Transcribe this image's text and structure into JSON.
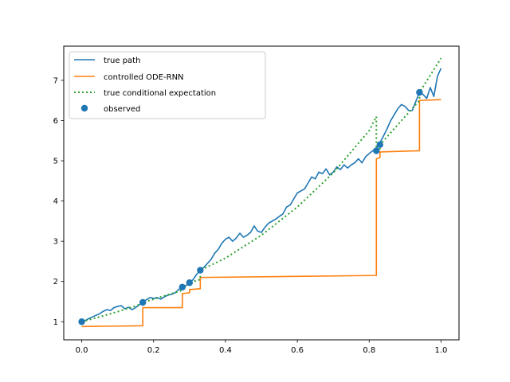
{
  "chart_data": {
    "type": "line",
    "title": "",
    "xlabel": "",
    "ylabel": "",
    "xlim": [
      -0.05,
      1.05
    ],
    "ylim": [
      0.55,
      7.85
    ],
    "xticks": [
      0.0,
      0.2,
      0.4,
      0.6,
      0.8,
      1.0
    ],
    "xtick_labels": [
      "0.0",
      "0.2",
      "0.4",
      "0.6",
      "0.8",
      "1.0"
    ],
    "yticks": [
      1,
      2,
      3,
      4,
      5,
      6,
      7
    ],
    "ytick_labels": [
      "1",
      "2",
      "3",
      "4",
      "5",
      "6",
      "7"
    ],
    "grid": false,
    "legend_position": "upper-left",
    "series": [
      {
        "name": "true path",
        "style": "solid",
        "color": "#1f77b4",
        "x": [
          0.0,
          0.01,
          0.02,
          0.03,
          0.04,
          0.05,
          0.06,
          0.07,
          0.08,
          0.09,
          0.1,
          0.11,
          0.12,
          0.13,
          0.14,
          0.15,
          0.16,
          0.17,
          0.18,
          0.19,
          0.2,
          0.21,
          0.22,
          0.23,
          0.24,
          0.25,
          0.26,
          0.27,
          0.28,
          0.29,
          0.3,
          0.31,
          0.32,
          0.33,
          0.34,
          0.35,
          0.36,
          0.37,
          0.38,
          0.39,
          0.4,
          0.41,
          0.42,
          0.43,
          0.44,
          0.45,
          0.46,
          0.47,
          0.48,
          0.49,
          0.5,
          0.51,
          0.52,
          0.53,
          0.54,
          0.55,
          0.56,
          0.57,
          0.58,
          0.59,
          0.6,
          0.61,
          0.62,
          0.63,
          0.64,
          0.65,
          0.66,
          0.67,
          0.68,
          0.69,
          0.7,
          0.71,
          0.72,
          0.73,
          0.74,
          0.75,
          0.76,
          0.77,
          0.78,
          0.79,
          0.8,
          0.81,
          0.82,
          0.83,
          0.84,
          0.85,
          0.86,
          0.87,
          0.88,
          0.89,
          0.9,
          0.91,
          0.92,
          0.93,
          0.94,
          0.95,
          0.96,
          0.97,
          0.98,
          0.99,
          1.0
        ],
        "y": [
          1.0,
          1.03,
          1.08,
          1.12,
          1.16,
          1.2,
          1.26,
          1.3,
          1.28,
          1.35,
          1.38,
          1.4,
          1.32,
          1.36,
          1.3,
          1.35,
          1.42,
          1.48,
          1.55,
          1.6,
          1.58,
          1.6,
          1.56,
          1.62,
          1.66,
          1.68,
          1.72,
          1.8,
          1.86,
          1.9,
          1.96,
          2.05,
          2.18,
          2.28,
          2.35,
          2.45,
          2.55,
          2.7,
          2.8,
          2.95,
          3.05,
          3.1,
          3.0,
          3.08,
          3.2,
          3.1,
          3.15,
          3.22,
          3.38,
          3.25,
          3.22,
          3.35,
          3.45,
          3.5,
          3.55,
          3.62,
          3.68,
          3.85,
          3.9,
          4.05,
          4.2,
          4.25,
          4.3,
          4.45,
          4.6,
          4.55,
          4.72,
          4.68,
          4.8,
          4.65,
          4.72,
          4.85,
          4.78,
          4.9,
          4.82,
          4.9,
          4.95,
          5.05,
          4.95,
          5.1,
          5.18,
          5.25,
          5.3,
          5.45,
          5.62,
          5.8,
          6.0,
          6.15,
          6.3,
          6.4,
          6.35,
          6.25,
          6.25,
          6.48,
          6.7,
          6.65,
          6.55,
          6.82,
          6.6,
          7.1,
          7.3
        ]
      },
      {
        "name": "controlled ODE-RNN",
        "style": "step",
        "color": "#ff7f0e",
        "x": [
          0.0,
          0.17,
          0.17,
          0.28,
          0.28,
          0.3,
          0.3,
          0.33,
          0.33,
          0.82,
          0.82,
          0.83,
          0.83,
          0.94,
          0.94,
          1.0
        ],
        "y": [
          0.88,
          0.9,
          1.35,
          1.35,
          1.7,
          1.72,
          1.8,
          1.82,
          2.1,
          2.15,
          5.05,
          5.08,
          5.22,
          5.25,
          6.5,
          6.52
        ]
      },
      {
        "name": "true conditional expectation",
        "style": "dotted",
        "color": "#2ca02c",
        "x": [
          0.0,
          0.05,
          0.1,
          0.17,
          0.17,
          0.2,
          0.28,
          0.28,
          0.3,
          0.3,
          0.33,
          0.33,
          0.4,
          0.5,
          0.6,
          0.7,
          0.8,
          0.82,
          0.82,
          0.83,
          0.83,
          0.9,
          0.94,
          0.94,
          1.0
        ],
        "y": [
          1.0,
          1.12,
          1.25,
          1.45,
          1.48,
          1.56,
          1.78,
          1.86,
          1.91,
          1.97,
          2.05,
          2.28,
          2.58,
          3.15,
          3.85,
          4.7,
          5.75,
          6.1,
          5.25,
          5.3,
          5.4,
          6.1,
          6.5,
          6.7,
          7.55
        ]
      }
    ],
    "observed": {
      "name": "observed",
      "color": "#1f77b4",
      "x": [
        0.0,
        0.17,
        0.28,
        0.3,
        0.33,
        0.82,
        0.83,
        0.94
      ],
      "y": [
        1.0,
        1.48,
        1.86,
        1.97,
        2.28,
        5.25,
        5.4,
        6.7
      ]
    }
  }
}
